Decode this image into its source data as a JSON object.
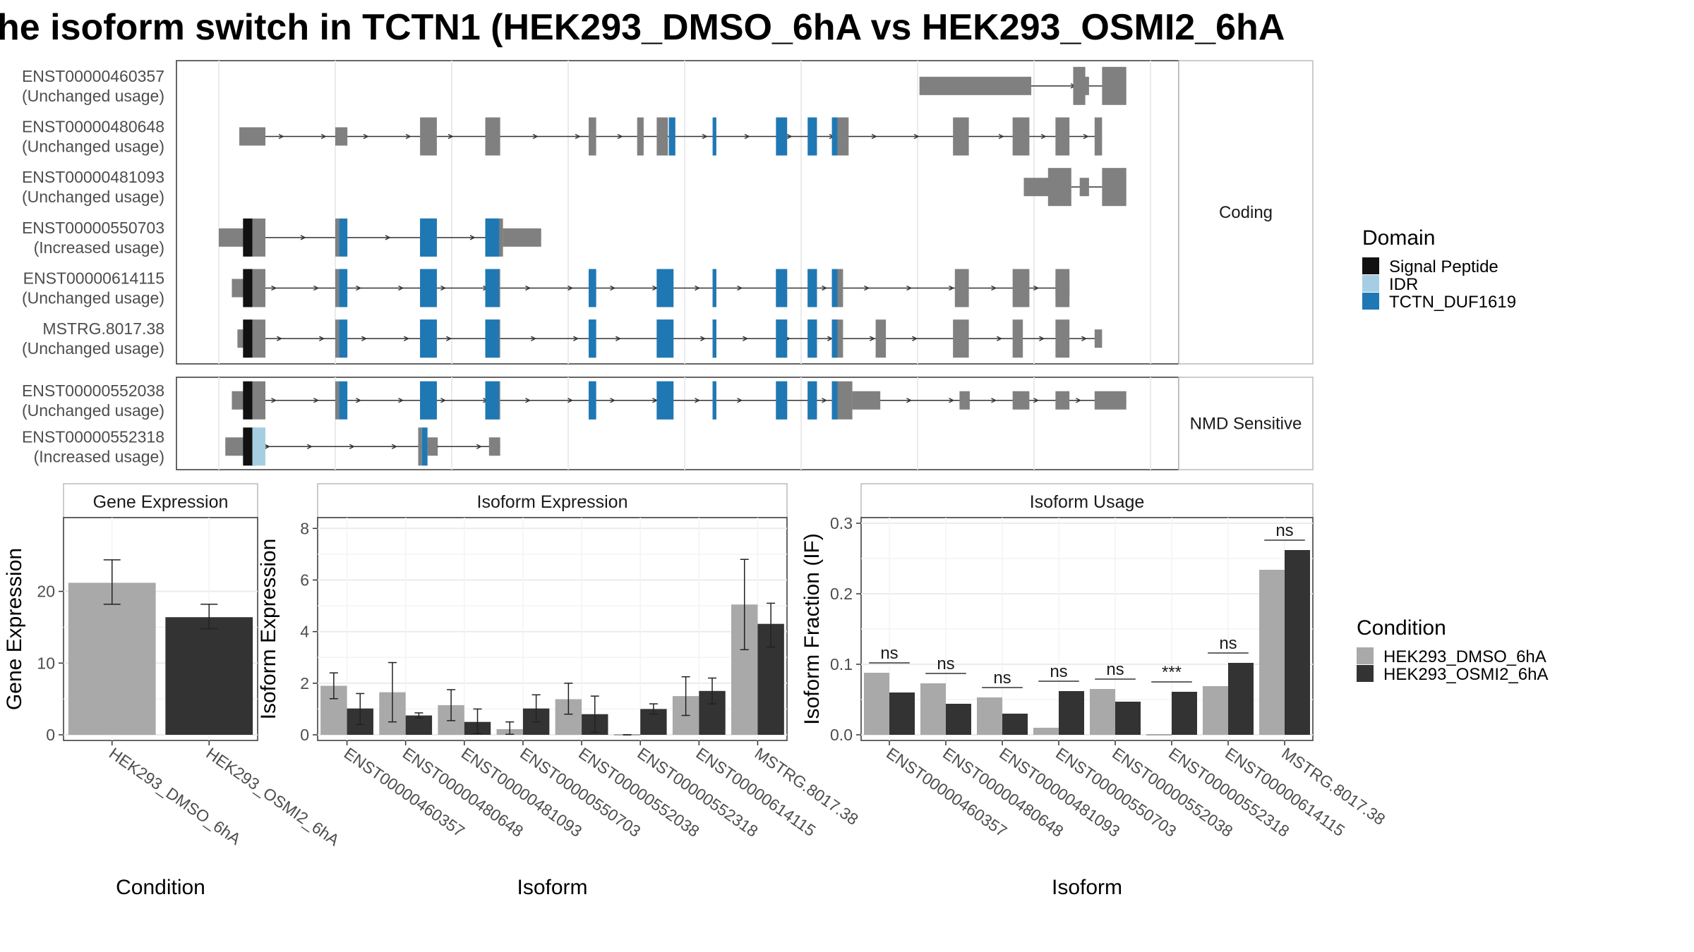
{
  "title": "he isoform switch in TCTN1 (HEK293_DMSO_6hA vs HEK293_OSMI2_6hA",
  "colors": {
    "exon": "#808080",
    "signal_peptide": "#111111",
    "idr": "#a6cee3",
    "tctn_duf1619": "#1f78b4",
    "cond1": "#a9a9a9",
    "cond2": "#333333"
  },
  "structure": {
    "x_range": [
      0,
      1000
    ],
    "panels": [
      {
        "label": "Coding",
        "transcripts": [
          {
            "name": "ENST00000460357",
            "usage": "(Unchanged usage)",
            "utr": [
              [
                752,
                872
              ],
              [
                924,
                934
              ]
            ],
            "cds": [
              [
                917,
                930
              ],
              [
                948,
                974
              ]
            ],
            "intron": [
              872,
              948
            ],
            "doms": []
          },
          {
            "name": "ENST00000480648",
            "usage": "(Unchanged usage)",
            "utr": [
              [
                22,
                50
              ],
              [
                125,
                138
              ]
            ],
            "cds": [
              [
                216,
                234
              ],
              [
                286,
                302
              ],
              [
                397,
                405
              ],
              [
                449,
                456
              ],
              [
                470,
                482
              ],
              [
                664,
                676
              ],
              [
                788,
                805
              ],
              [
                852,
                870
              ],
              [
                898,
                913
              ],
              [
                940,
                948
              ]
            ],
            "intron": [
              22,
              948
            ],
            "doms": [
              [
                483,
                490,
                "tctn_duf1619"
              ],
              [
                530,
                534,
                "tctn_duf1619"
              ],
              [
                598,
                610,
                "tctn_duf1619"
              ],
              [
                632,
                642,
                "tctn_duf1619"
              ],
              [
                658,
                664,
                "tctn_duf1619"
              ]
            ]
          },
          {
            "name": "ENST00000481093",
            "usage": "(Unchanged usage)",
            "utr": [
              [
                864,
                895
              ],
              [
                924,
                934
              ]
            ],
            "cds": [
              [
                890,
                915
              ],
              [
                948,
                974
              ]
            ],
            "intron": [
              915,
              948
            ],
            "doms": []
          },
          {
            "name": "ENST00000550703",
            "usage": "(Increased usage)",
            "utr": [
              [
                0,
                28
              ],
              [
                305,
                346
              ]
            ],
            "cds": [
              [
                36,
                50
              ],
              [
                125,
                129
              ],
              [
                216,
                234
              ],
              [
                286,
                305
              ]
            ],
            "intron": [
              0,
              346
            ],
            "doms": [
              [
                26,
                36,
                "signal_peptide"
              ],
              [
                129,
                138,
                "tctn_duf1619"
              ],
              [
                216,
                234,
                "tctn_duf1619"
              ],
              [
                286,
                301,
                "tctn_duf1619"
              ]
            ]
          },
          {
            "name": "ENST00000614115",
            "usage": "(Unchanged usage)",
            "utr": [
              [
                14,
                28
              ],
              [
                898,
                913
              ]
            ],
            "cds": [
              [
                36,
                50
              ],
              [
                125,
                129
              ],
              [
                216,
                234
              ],
              [
                286,
                302
              ],
              [
                397,
                405
              ],
              [
                470,
                488
              ],
              [
                530,
                534
              ],
              [
                598,
                610
              ],
              [
                632,
                642
              ],
              [
                658,
                670
              ],
              [
                790,
                805
              ],
              [
                852,
                870
              ],
              [
                898,
                913
              ]
            ],
            "intron": [
              14,
              913
            ],
            "doms": [
              [
                26,
                36,
                "signal_peptide"
              ],
              [
                129,
                138,
                "tctn_duf1619"
              ],
              [
                216,
                234,
                "tctn_duf1619"
              ],
              [
                286,
                301,
                "tctn_duf1619"
              ],
              [
                397,
                405,
                "tctn_duf1619"
              ],
              [
                470,
                488,
                "tctn_duf1619"
              ],
              [
                530,
                534,
                "tctn_duf1619"
              ],
              [
                598,
                610,
                "tctn_duf1619"
              ],
              [
                632,
                642,
                "tctn_duf1619"
              ],
              [
                658,
                664,
                "tctn_duf1619"
              ]
            ]
          },
          {
            "name": "MSTRG.8017.38",
            "usage": "(Unchanged usage)",
            "utr": [
              [
                20,
                28
              ],
              [
                940,
                948
              ]
            ],
            "cds": [
              [
                36,
                50
              ],
              [
                125,
                129
              ],
              [
                216,
                234
              ],
              [
                286,
                302
              ],
              [
                397,
                405
              ],
              [
                470,
                488
              ],
              [
                530,
                534
              ],
              [
                598,
                610
              ],
              [
                632,
                642
              ],
              [
                658,
                670
              ],
              [
                705,
                716
              ],
              [
                788,
                805
              ],
              [
                852,
                863
              ],
              [
                898,
                913
              ]
            ],
            "intron": [
              20,
              948
            ],
            "doms": [
              [
                26,
                36,
                "signal_peptide"
              ],
              [
                129,
                138,
                "tctn_duf1619"
              ],
              [
                216,
                234,
                "tctn_duf1619"
              ],
              [
                286,
                301,
                "tctn_duf1619"
              ],
              [
                397,
                405,
                "tctn_duf1619"
              ],
              [
                470,
                488,
                "tctn_duf1619"
              ],
              [
                530,
                534,
                "tctn_duf1619"
              ],
              [
                598,
                610,
                "tctn_duf1619"
              ],
              [
                632,
                642,
                "tctn_duf1619"
              ],
              [
                658,
                664,
                "tctn_duf1619"
              ]
            ]
          }
        ]
      },
      {
        "label": "NMD Sensitive",
        "transcripts": [
          {
            "name": "ENST00000552038",
            "usage": "(Unchanged usage)",
            "utr": [
              [
                14,
                28
              ],
              [
                680,
                710
              ],
              [
                795,
                806
              ],
              [
                852,
                870
              ],
              [
                898,
                913
              ],
              [
                940,
                974
              ]
            ],
            "cds": [
              [
                36,
                50
              ],
              [
                125,
                129
              ],
              [
                216,
                234
              ],
              [
                286,
                302
              ],
              [
                397,
                405
              ],
              [
                470,
                488
              ],
              [
                530,
                534
              ],
              [
                598,
                610
              ],
              [
                632,
                642
              ],
              [
                658,
                680
              ]
            ],
            "intron": [
              14,
              974
            ],
            "doms": [
              [
                26,
                36,
                "signal_peptide"
              ],
              [
                129,
                138,
                "tctn_duf1619"
              ],
              [
                216,
                234,
                "tctn_duf1619"
              ],
              [
                286,
                301,
                "tctn_duf1619"
              ],
              [
                397,
                405,
                "tctn_duf1619"
              ],
              [
                470,
                488,
                "tctn_duf1619"
              ],
              [
                530,
                534,
                "tctn_duf1619"
              ],
              [
                598,
                610,
                "tctn_duf1619"
              ],
              [
                632,
                642,
                "tctn_duf1619"
              ],
              [
                658,
                664,
                "tctn_duf1619"
              ]
            ]
          },
          {
            "name": "ENST00000552318",
            "usage": "(Increased usage)",
            "utr": [
              [
                7,
                28
              ],
              [
                224,
                235
              ],
              [
                290,
                302
              ]
            ],
            "cds": [
              [
                36,
                40
              ],
              [
                214,
                218
              ]
            ],
            "intron": [
              7,
              302
            ],
            "doms": [
              [
                26,
                36,
                "signal_peptide"
              ],
              [
                36,
                50,
                "idr"
              ],
              [
                218,
                224,
                "tctn_duf1619"
              ]
            ]
          }
        ]
      }
    ]
  },
  "legend_domain": {
    "title": "Domain",
    "items": [
      {
        "label": "Signal Peptide",
        "color": "#111111"
      },
      {
        "label": "IDR",
        "color": "#a6cee3"
      },
      {
        "label": "TCTN_DUF1619",
        "color": "#1f78b4"
      }
    ]
  },
  "legend_condition": {
    "title": "Condition",
    "items": [
      {
        "label": "HEK293_DMSO_6hA",
        "color": "#a9a9a9"
      },
      {
        "label": "HEK293_OSMI2_6hA",
        "color": "#333333"
      }
    ]
  },
  "chart_data": [
    {
      "type": "bar",
      "title": "Gene Expression",
      "xlabel": "Condition",
      "ylabel": "Gene Expression",
      "ylim": [
        0,
        29.5
      ],
      "yticks": [
        0,
        10,
        20
      ],
      "categories": [
        "HEK293_DMSO_6hA",
        "HEK293_OSMI2_6hA"
      ],
      "values": [
        21.2,
        16.4
      ],
      "err_low": [
        18.2,
        14.8
      ],
      "err_high": [
        24.4,
        18.2
      ],
      "colors": [
        "#a9a9a9",
        "#333333"
      ]
    },
    {
      "type": "bar",
      "title": "Isoform Expression",
      "xlabel": "Isoform",
      "ylabel": "Isoform Expression",
      "ylim": [
        0,
        8.2
      ],
      "yticks": [
        0,
        2,
        4,
        6,
        8
      ],
      "categories": [
        "ENST00000460357",
        "ENST00000480648",
        "ENST00000481093",
        "ENST00000550703",
        "ENST00000552038",
        "ENST00000552318",
        "ENST00000614115",
        "MSTRG.8017.38"
      ],
      "series": [
        {
          "name": "HEK293_DMSO_6hA",
          "values": [
            1.9,
            1.65,
            1.15,
            0.22,
            1.38,
            0.0,
            1.5,
            5.05
          ],
          "err_low": [
            1.4,
            0.5,
            0.55,
            0.02,
            0.8,
            0.0,
            0.75,
            3.3
          ],
          "err_high": [
            2.4,
            2.8,
            1.75,
            0.5,
            2.0,
            0.0,
            2.25,
            6.8
          ]
        },
        {
          "name": "HEK293_OSMI2_6hA",
          "values": [
            1.02,
            0.75,
            0.5,
            1.02,
            0.8,
            1.0,
            1.7,
            4.3
          ],
          "err_low": [
            0.4,
            0.65,
            0.05,
            0.5,
            0.1,
            0.8,
            1.2,
            3.4
          ],
          "err_high": [
            1.6,
            0.85,
            1.0,
            1.55,
            1.5,
            1.2,
            2.2,
            5.1
          ]
        }
      ]
    },
    {
      "type": "bar",
      "title": "Isoform Usage",
      "xlabel": "Isoform",
      "ylabel": "Isoform Fraction (IF)",
      "ylim": [
        0,
        0.3
      ],
      "yticks": [
        0.0,
        0.1,
        0.2,
        0.3
      ],
      "ytick_labels": [
        "0.0",
        "0.1",
        "0.2",
        "0.3"
      ],
      "categories": [
        "ENST00000460357",
        "ENST00000480648",
        "ENST00000481093",
        "ENST00000550703",
        "ENST00000552038",
        "ENST00000552318",
        "ENST00000614115",
        "MSTRG.8017.38"
      ],
      "series": [
        {
          "name": "HEK293_DMSO_6hA",
          "values": [
            0.088,
            0.073,
            0.053,
            0.01,
            0.065,
            0.0,
            0.069,
            0.234
          ]
        },
        {
          "name": "HEK293_OSMI2_6hA",
          "values": [
            0.06,
            0.044,
            0.03,
            0.062,
            0.047,
            0.061,
            0.102,
            0.262
          ]
        }
      ],
      "annotations": [
        "ns",
        "ns",
        "ns",
        "ns",
        "ns",
        "***",
        "ns",
        "ns"
      ]
    }
  ]
}
